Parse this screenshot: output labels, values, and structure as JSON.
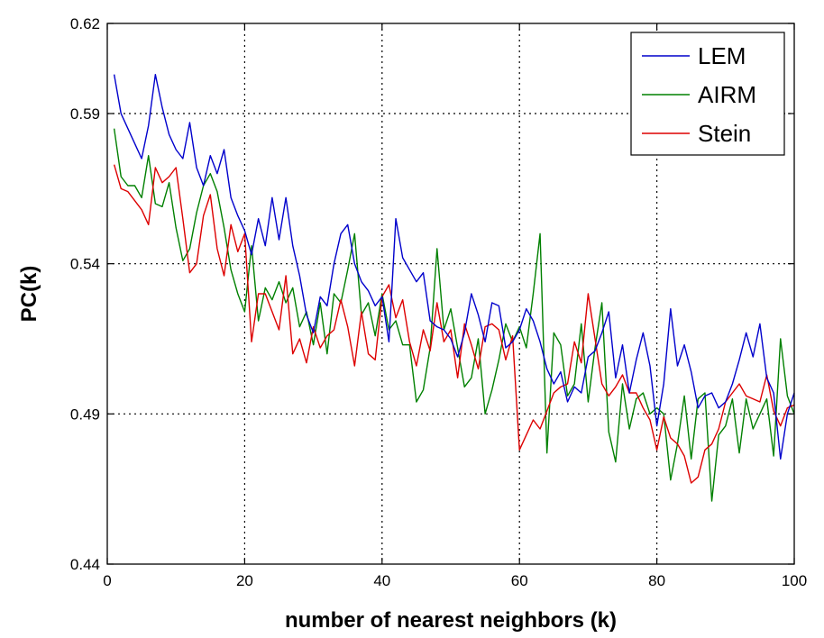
{
  "chart_data": {
    "type": "line",
    "xlabel": "number of nearest neighbors (k)",
    "ylabel": "PC(k)",
    "xlim": [
      0,
      100
    ],
    "ylim": [
      0.44,
      0.62
    ],
    "x_ticks": [
      0,
      20,
      40,
      60,
      80,
      100
    ],
    "y_ticks": [
      0.44,
      0.49,
      0.54,
      0.59,
      0.62
    ],
    "x_tick_labels": [
      "0",
      "20",
      "40",
      "60",
      "80",
      "100"
    ],
    "y_tick_labels": [
      "0.44",
      "0.49",
      "0.54",
      "0.59",
      "0.62"
    ],
    "grid": true,
    "legend_position": "top-right",
    "series": [
      {
        "name": "LEM",
        "color": "#0000cc",
        "x": [
          1,
          2,
          3,
          4,
          5,
          6,
          7,
          8,
          9,
          10,
          11,
          12,
          13,
          14,
          15,
          16,
          17,
          18,
          19,
          20,
          21,
          22,
          23,
          24,
          25,
          26,
          27,
          28,
          29,
          30,
          31,
          32,
          33,
          34,
          35,
          36,
          37,
          38,
          39,
          40,
          41,
          42,
          43,
          44,
          45,
          46,
          47,
          48,
          49,
          50,
          51,
          52,
          53,
          54,
          55,
          56,
          57,
          58,
          59,
          60,
          61,
          62,
          63,
          64,
          65,
          66,
          67,
          68,
          69,
          70,
          71,
          72,
          73,
          74,
          75,
          76,
          77,
          78,
          79,
          80,
          81,
          82,
          83,
          84,
          85,
          86,
          87,
          88,
          89,
          90,
          91,
          92,
          93,
          94,
          95,
          96,
          97,
          98,
          99,
          100
        ],
        "y": [
          0.603,
          0.59,
          0.585,
          0.58,
          0.575,
          0.586,
          0.603,
          0.592,
          0.583,
          0.578,
          0.575,
          0.587,
          0.572,
          0.566,
          0.576,
          0.57,
          0.578,
          0.562,
          0.556,
          0.551,
          0.543,
          0.555,
          0.546,
          0.562,
          0.548,
          0.562,
          0.546,
          0.536,
          0.523,
          0.517,
          0.529,
          0.526,
          0.54,
          0.55,
          0.553,
          0.54,
          0.534,
          0.531,
          0.526,
          0.529,
          0.514,
          0.555,
          0.542,
          0.538,
          0.534,
          0.537,
          0.521,
          0.519,
          0.518,
          0.515,
          0.509,
          0.517,
          0.53,
          0.523,
          0.514,
          0.527,
          0.526,
          0.512,
          0.514,
          0.518,
          0.525,
          0.521,
          0.514,
          0.505,
          0.5,
          0.504,
          0.494,
          0.499,
          0.497,
          0.509,
          0.511,
          0.517,
          0.524,
          0.502,
          0.513,
          0.497,
          0.508,
          0.517,
          0.506,
          0.486,
          0.5,
          0.525,
          0.506,
          0.513,
          0.504,
          0.492,
          0.496,
          0.497,
          0.492,
          0.494,
          0.5,
          0.508,
          0.517,
          0.509,
          0.52,
          0.502,
          0.497,
          0.475,
          0.49,
          0.497
        ]
      },
      {
        "name": "AIRM",
        "color": "#008000",
        "x": [
          1,
          2,
          3,
          4,
          5,
          6,
          7,
          8,
          9,
          10,
          11,
          12,
          13,
          14,
          15,
          16,
          17,
          18,
          19,
          20,
          21,
          22,
          23,
          24,
          25,
          26,
          27,
          28,
          29,
          30,
          31,
          32,
          33,
          34,
          35,
          36,
          37,
          38,
          39,
          40,
          41,
          42,
          43,
          44,
          45,
          46,
          47,
          48,
          49,
          50,
          51,
          52,
          53,
          54,
          55,
          56,
          57,
          58,
          59,
          60,
          61,
          62,
          63,
          64,
          65,
          66,
          67,
          68,
          69,
          70,
          71,
          72,
          73,
          74,
          75,
          76,
          77,
          78,
          79,
          80,
          81,
          82,
          83,
          84,
          85,
          86,
          87,
          88,
          89,
          90,
          91,
          92,
          93,
          94,
          95,
          96,
          97,
          98,
          99,
          100
        ],
        "y": [
          0.585,
          0.569,
          0.566,
          0.566,
          0.562,
          0.576,
          0.56,
          0.559,
          0.567,
          0.552,
          0.541,
          0.545,
          0.557,
          0.566,
          0.57,
          0.564,
          0.552,
          0.538,
          0.53,
          0.524,
          0.546,
          0.521,
          0.532,
          0.528,
          0.534,
          0.527,
          0.532,
          0.519,
          0.524,
          0.513,
          0.527,
          0.51,
          0.53,
          0.527,
          0.538,
          0.55,
          0.523,
          0.527,
          0.516,
          0.53,
          0.518,
          0.521,
          0.513,
          0.513,
          0.494,
          0.498,
          0.512,
          0.545,
          0.518,
          0.525,
          0.512,
          0.499,
          0.502,
          0.515,
          0.49,
          0.498,
          0.508,
          0.52,
          0.514,
          0.519,
          0.512,
          0.53,
          0.55,
          0.477,
          0.517,
          0.513,
          0.496,
          0.5,
          0.52,
          0.494,
          0.512,
          0.527,
          0.484,
          0.474,
          0.5,
          0.485,
          0.495,
          0.497,
          0.49,
          0.492,
          0.49,
          0.468,
          0.48,
          0.496,
          0.475,
          0.495,
          0.497,
          0.461,
          0.483,
          0.486,
          0.495,
          0.477,
          0.495,
          0.485,
          0.49,
          0.495,
          0.476,
          0.515,
          0.496,
          0.49
        ]
      },
      {
        "name": "Stein",
        "color": "#dd0000",
        "x": [
          1,
          2,
          3,
          4,
          5,
          6,
          7,
          8,
          9,
          10,
          11,
          12,
          13,
          14,
          15,
          16,
          17,
          18,
          19,
          20,
          21,
          22,
          23,
          24,
          25,
          26,
          27,
          28,
          29,
          30,
          31,
          32,
          33,
          34,
          35,
          36,
          37,
          38,
          39,
          40,
          41,
          42,
          43,
          44,
          45,
          46,
          47,
          48,
          49,
          50,
          51,
          52,
          53,
          54,
          55,
          56,
          57,
          58,
          59,
          60,
          61,
          62,
          63,
          64,
          65,
          66,
          67,
          68,
          69,
          70,
          71,
          72,
          73,
          74,
          75,
          76,
          77,
          78,
          79,
          80,
          81,
          82,
          83,
          84,
          85,
          86,
          87,
          88,
          89,
          90,
          91,
          92,
          93,
          94,
          95,
          96,
          97,
          98,
          99,
          100
        ],
        "y": [
          0.573,
          0.565,
          0.564,
          0.561,
          0.558,
          0.553,
          0.572,
          0.567,
          0.569,
          0.572,
          0.555,
          0.537,
          0.54,
          0.556,
          0.563,
          0.545,
          0.536,
          0.553,
          0.544,
          0.55,
          0.514,
          0.53,
          0.53,
          0.524,
          0.518,
          0.536,
          0.51,
          0.515,
          0.507,
          0.519,
          0.512,
          0.516,
          0.518,
          0.528,
          0.519,
          0.506,
          0.524,
          0.51,
          0.508,
          0.529,
          0.533,
          0.522,
          0.528,
          0.514,
          0.506,
          0.518,
          0.511,
          0.527,
          0.514,
          0.518,
          0.502,
          0.52,
          0.513,
          0.505,
          0.519,
          0.52,
          0.518,
          0.508,
          0.516,
          0.478,
          0.483,
          0.488,
          0.485,
          0.491,
          0.497,
          0.499,
          0.5,
          0.514,
          0.507,
          0.53,
          0.515,
          0.5,
          0.496,
          0.499,
          0.503,
          0.497,
          0.497,
          0.492,
          0.488,
          0.478,
          0.489,
          0.482,
          0.48,
          0.476,
          0.467,
          0.469,
          0.478,
          0.48,
          0.485,
          0.494,
          0.497,
          0.5,
          0.496,
          0.495,
          0.494,
          0.503,
          0.491,
          0.486,
          0.492,
          0.493
        ]
      }
    ]
  }
}
